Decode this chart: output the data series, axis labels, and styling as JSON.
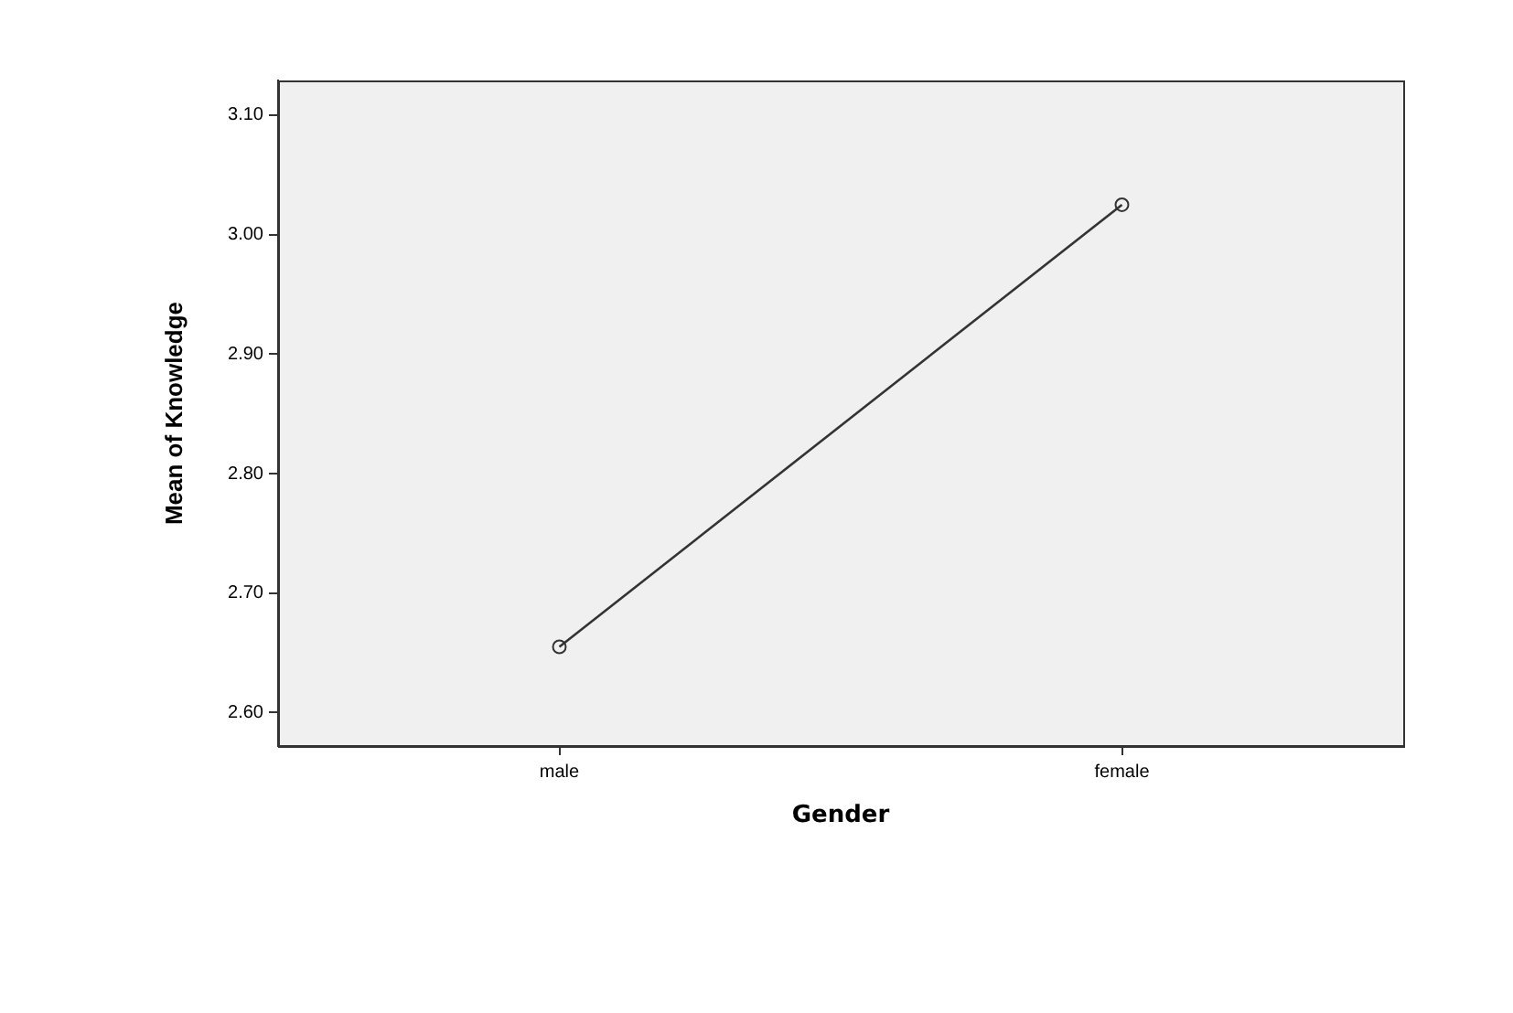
{
  "chart_data": {
    "type": "line",
    "xlabel": "Gender",
    "ylabel": "Mean of Knowledge",
    "categories": [
      "male",
      "female"
    ],
    "values": [
      2.655,
      3.025
    ],
    "color": "#333333",
    "ylim": [
      2.572,
      3.129
    ],
    "yticks": [
      {
        "value": 2.6,
        "label": "2.60"
      },
      {
        "value": 2.7,
        "label": "2.70"
      },
      {
        "value": 2.8,
        "label": "2.80"
      },
      {
        "value": 2.9,
        "label": "2.90"
      },
      {
        "value": 3.0,
        "label": "3.00"
      },
      {
        "value": 3.1,
        "label": "3.10"
      }
    ],
    "marker": "circle",
    "line_style": "solid",
    "grid": false,
    "legend": false
  }
}
